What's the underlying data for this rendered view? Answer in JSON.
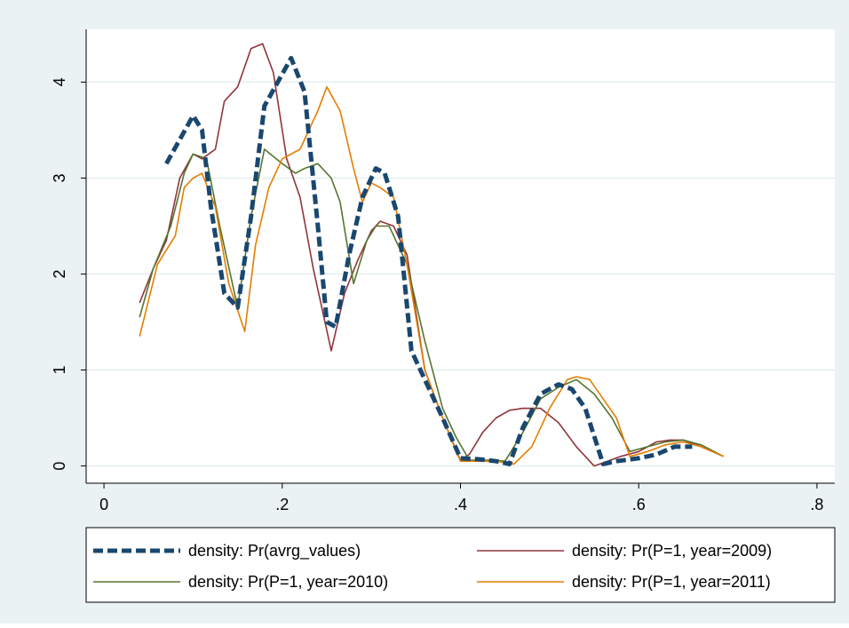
{
  "chart_data": {
    "type": "line",
    "title": "",
    "xlabel": "",
    "ylabel": "",
    "xlim": [
      -0.02,
      0.82
    ],
    "ylim": [
      -0.18,
      4.55
    ],
    "xticks": [
      0,
      0.2,
      0.4,
      0.6,
      0.8
    ],
    "xtick_labels": [
      "0",
      ".2",
      ".4",
      ".6",
      ".8"
    ],
    "yticks": [
      0,
      1,
      2,
      3,
      4
    ],
    "ytick_labels": [
      "0",
      "1",
      "2",
      "3",
      "4"
    ],
    "grid": "horizontal",
    "legend_position": "bottom",
    "colors": {
      "plot_background": "#ffffff",
      "outer_background": "#eaf2f3",
      "gridline": "#eaf2f3"
    },
    "series": [
      {
        "name": "density: Pr(avrg_values)",
        "color": "#1a476f",
        "style": "dashed-thick",
        "x": [
          0.07,
          0.085,
          0.1,
          0.11,
          0.12,
          0.135,
          0.15,
          0.165,
          0.18,
          0.195,
          0.21,
          0.225,
          0.24,
          0.25,
          0.26,
          0.275,
          0.29,
          0.305,
          0.315,
          0.33,
          0.345,
          0.36,
          0.38,
          0.4,
          0.42,
          0.44,
          0.455,
          0.47,
          0.49,
          0.51,
          0.525,
          0.54,
          0.56,
          0.575,
          0.6,
          0.62,
          0.64,
          0.66
        ],
        "y": [
          3.15,
          3.4,
          3.65,
          3.5,
          2.7,
          1.8,
          1.65,
          2.6,
          3.75,
          4.0,
          4.25,
          3.9,
          2.5,
          1.5,
          1.45,
          2.2,
          2.8,
          3.1,
          3.05,
          2.6,
          1.2,
          0.9,
          0.5,
          0.08,
          0.07,
          0.05,
          0.02,
          0.4,
          0.75,
          0.85,
          0.8,
          0.6,
          0.02,
          0.05,
          0.08,
          0.12,
          0.2,
          0.2
        ]
      },
      {
        "name": "density: Pr(P=1, year=2009)",
        "color": "#90353b",
        "style": "solid",
        "x": [
          0.04,
          0.055,
          0.07,
          0.085,
          0.1,
          0.11,
          0.125,
          0.135,
          0.15,
          0.165,
          0.178,
          0.19,
          0.205,
          0.22,
          0.235,
          0.255,
          0.27,
          0.285,
          0.3,
          0.31,
          0.325,
          0.34,
          0.36,
          0.38,
          0.4,
          0.41,
          0.425,
          0.44,
          0.455,
          0.47,
          0.49,
          0.51,
          0.53,
          0.55,
          0.565,
          0.58,
          0.6,
          0.62,
          0.635,
          0.65,
          0.67,
          0.695
        ],
        "y": [
          1.7,
          2.05,
          2.35,
          3.0,
          3.25,
          3.2,
          3.3,
          3.8,
          3.95,
          4.35,
          4.4,
          4.1,
          3.2,
          2.8,
          2.05,
          1.2,
          1.8,
          2.15,
          2.45,
          2.55,
          2.5,
          2.2,
          1.0,
          0.5,
          0.06,
          0.12,
          0.35,
          0.5,
          0.58,
          0.6,
          0.6,
          0.45,
          0.2,
          0.0,
          0.05,
          0.1,
          0.15,
          0.25,
          0.27,
          0.27,
          0.2,
          0.1
        ]
      },
      {
        "name": "density: Pr(P=1, year=2010)",
        "color": "#55752f",
        "style": "solid",
        "x": [
          0.04,
          0.055,
          0.075,
          0.09,
          0.1,
          0.115,
          0.13,
          0.15,
          0.165,
          0.18,
          0.2,
          0.215,
          0.225,
          0.24,
          0.255,
          0.265,
          0.28,
          0.295,
          0.305,
          0.32,
          0.34,
          0.36,
          0.38,
          0.395,
          0.41,
          0.43,
          0.45,
          0.47,
          0.49,
          0.51,
          0.53,
          0.55,
          0.57,
          0.59,
          0.61,
          0.63,
          0.65,
          0.67,
          0.695
        ],
        "y": [
          1.55,
          2.05,
          2.5,
          3.05,
          3.25,
          3.2,
          2.5,
          1.65,
          2.6,
          3.3,
          3.15,
          3.05,
          3.1,
          3.15,
          3.0,
          2.75,
          1.9,
          2.35,
          2.5,
          2.5,
          2.1,
          1.3,
          0.6,
          0.3,
          0.06,
          0.06,
          0.05,
          0.35,
          0.7,
          0.82,
          0.9,
          0.75,
          0.5,
          0.15,
          0.2,
          0.25,
          0.27,
          0.22,
          0.1
        ]
      },
      {
        "name": "density: Pr(P=1, year=2011)",
        "color": "#e37e00",
        "style": "solid",
        "x": [
          0.04,
          0.06,
          0.08,
          0.09,
          0.1,
          0.11,
          0.125,
          0.14,
          0.158,
          0.17,
          0.185,
          0.2,
          0.22,
          0.24,
          0.25,
          0.265,
          0.28,
          0.29,
          0.3,
          0.31,
          0.325,
          0.34,
          0.36,
          0.38,
          0.4,
          0.42,
          0.44,
          0.46,
          0.48,
          0.5,
          0.52,
          0.53,
          0.545,
          0.56,
          0.575,
          0.59,
          0.61,
          0.63,
          0.65,
          0.67,
          0.695
        ],
        "y": [
          1.35,
          2.1,
          2.4,
          2.9,
          3.0,
          3.05,
          2.7,
          1.9,
          1.4,
          2.3,
          2.9,
          3.2,
          3.3,
          3.7,
          3.95,
          3.7,
          3.1,
          2.75,
          2.95,
          2.9,
          2.8,
          2.1,
          1.0,
          0.5,
          0.05,
          0.05,
          0.05,
          0.02,
          0.2,
          0.6,
          0.9,
          0.93,
          0.9,
          0.7,
          0.5,
          0.1,
          0.15,
          0.22,
          0.25,
          0.2,
          0.1
        ]
      }
    ]
  }
}
